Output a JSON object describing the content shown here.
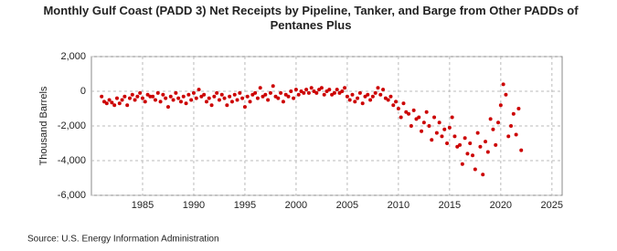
{
  "chart_data": {
    "type": "scatter",
    "title": "Monthly Gulf Coast (PADD 3) Net Receipts by Pipeline, Tanker, and Barge from Other PADDs of Pentanes Plus",
    "ylabel": "Thousand Barrels",
    "source": "Source: U.S. Energy Information Administration",
    "color": "#cc0000",
    "grid": true,
    "xlim": [
      1980,
      2026
    ],
    "xticks": [
      1985,
      1990,
      1995,
      2000,
      2005,
      2010,
      2015,
      2020,
      2025
    ],
    "ylim": [
      -6000,
      2000
    ],
    "yticks": [
      {
        "value": -6000,
        "label": "-6,000"
      },
      {
        "value": -4000,
        "label": "-4,000"
      },
      {
        "value": -2000,
        "label": "-2,000"
      },
      0,
      {
        "value": 2000,
        "label": "2,000"
      }
    ],
    "x": [
      1981,
      1981.25,
      1981.5,
      1981.75,
      1982,
      1982.25,
      1982.5,
      1982.75,
      1983,
      1983.25,
      1983.5,
      1983.75,
      1984,
      1984.25,
      1984.5,
      1984.75,
      1985,
      1985.25,
      1985.5,
      1985.75,
      1986,
      1986.25,
      1986.5,
      1986.75,
      1987,
      1987.25,
      1987.5,
      1987.75,
      1988,
      1988.25,
      1988.5,
      1988.75,
      1989,
      1989.25,
      1989.5,
      1989.75,
      1990,
      1990.25,
      1990.5,
      1990.75,
      1991,
      1991.25,
      1991.5,
      1991.75,
      1992,
      1992.25,
      1992.5,
      1992.75,
      1993,
      1993.25,
      1993.5,
      1993.75,
      1994,
      1994.25,
      1994.5,
      1994.75,
      1995,
      1995.25,
      1995.5,
      1995.75,
      1996,
      1996.25,
      1996.5,
      1996.75,
      1997,
      1997.25,
      1997.5,
      1997.75,
      1998,
      1998.25,
      1998.5,
      1998.75,
      1999,
      1999.25,
      1999.5,
      1999.75,
      2000,
      2000.25,
      2000.5,
      2000.75,
      2001,
      2001.25,
      2001.5,
      2001.75,
      2002,
      2002.25,
      2002.5,
      2002.75,
      2003,
      2003.25,
      2003.5,
      2003.75,
      2004,
      2004.25,
      2004.5,
      2004.75,
      2005,
      2005.25,
      2005.5,
      2005.75,
      2006,
      2006.25,
      2006.5,
      2006.75,
      2007,
      2007.25,
      2007.5,
      2007.75,
      2008,
      2008.25,
      2008.5,
      2008.75,
      2009,
      2009.25,
      2009.5,
      2009.75,
      2010,
      2010.25,
      2010.5,
      2010.75,
      2011,
      2011.25,
      2011.5,
      2011.75,
      2012,
      2012.25,
      2012.5,
      2012.75,
      2013,
      2013.25,
      2013.5,
      2013.75,
      2014,
      2014.25,
      2014.5,
      2014.75,
      2015,
      2015.25,
      2015.5,
      2015.75,
      2016,
      2016.25,
      2016.5,
      2016.75,
      2017,
      2017.25,
      2017.5,
      2017.75,
      2018,
      2018.25,
      2018.5,
      2018.75,
      2019,
      2019.25,
      2019.5,
      2019.75,
      2020,
      2020.25,
      2020.5,
      2020.75,
      2021,
      2021.25,
      2021.5,
      2021.75,
      2022
    ],
    "values": [
      -300,
      -600,
      -700,
      -500,
      -650,
      -800,
      -400,
      -700,
      -500,
      -300,
      -800,
      -400,
      -200,
      -500,
      -300,
      -100,
      -400,
      -600,
      -200,
      -300,
      -300,
      -500,
      -100,
      -600,
      -200,
      -400,
      -900,
      -300,
      -500,
      -100,
      -400,
      -600,
      -300,
      -700,
      -200,
      -500,
      -100,
      -400,
      100,
      -300,
      -200,
      -600,
      -400,
      -800,
      -300,
      -100,
      -500,
      -200,
      -400,
      -800,
      -300,
      -600,
      -200,
      -500,
      -100,
      -400,
      -900,
      -300,
      -600,
      -200,
      -100,
      -400,
      200,
      -300,
      -200,
      -500,
      -100,
      300,
      -300,
      -400,
      -100,
      -600,
      -200,
      -300,
      0,
      -400,
      100,
      -200,
      0,
      -100,
      100,
      -100,
      200,
      0,
      -100,
      100,
      200,
      -200,
      0,
      100,
      -200,
      -100,
      100,
      -100,
      0,
      200,
      -300,
      -500,
      -200,
      -600,
      -400,
      -100,
      -700,
      -300,
      -200,
      -500,
      -300,
      -100,
      200,
      -200,
      100,
      -400,
      -500,
      -300,
      -800,
      -600,
      -1000,
      -1500,
      -700,
      -1200,
      -1300,
      -2000,
      -1100,
      -1600,
      -1500,
      -2300,
      -1800,
      -1200,
      -2000,
      -2800,
      -1500,
      -2400,
      -1800,
      -2600,
      -2200,
      -3000,
      -2100,
      -1500,
      -2600,
      -3200,
      -3100,
      -4200,
      -2700,
      -3600,
      -3000,
      -3700,
      -4500,
      -2400,
      -3200,
      -4800,
      -2900,
      -3500,
      -1600,
      -2200,
      -3100,
      -1800,
      -800,
      400,
      -200,
      -2600,
      -2000,
      -1300,
      -2500,
      -1000,
      -3400
    ]
  }
}
